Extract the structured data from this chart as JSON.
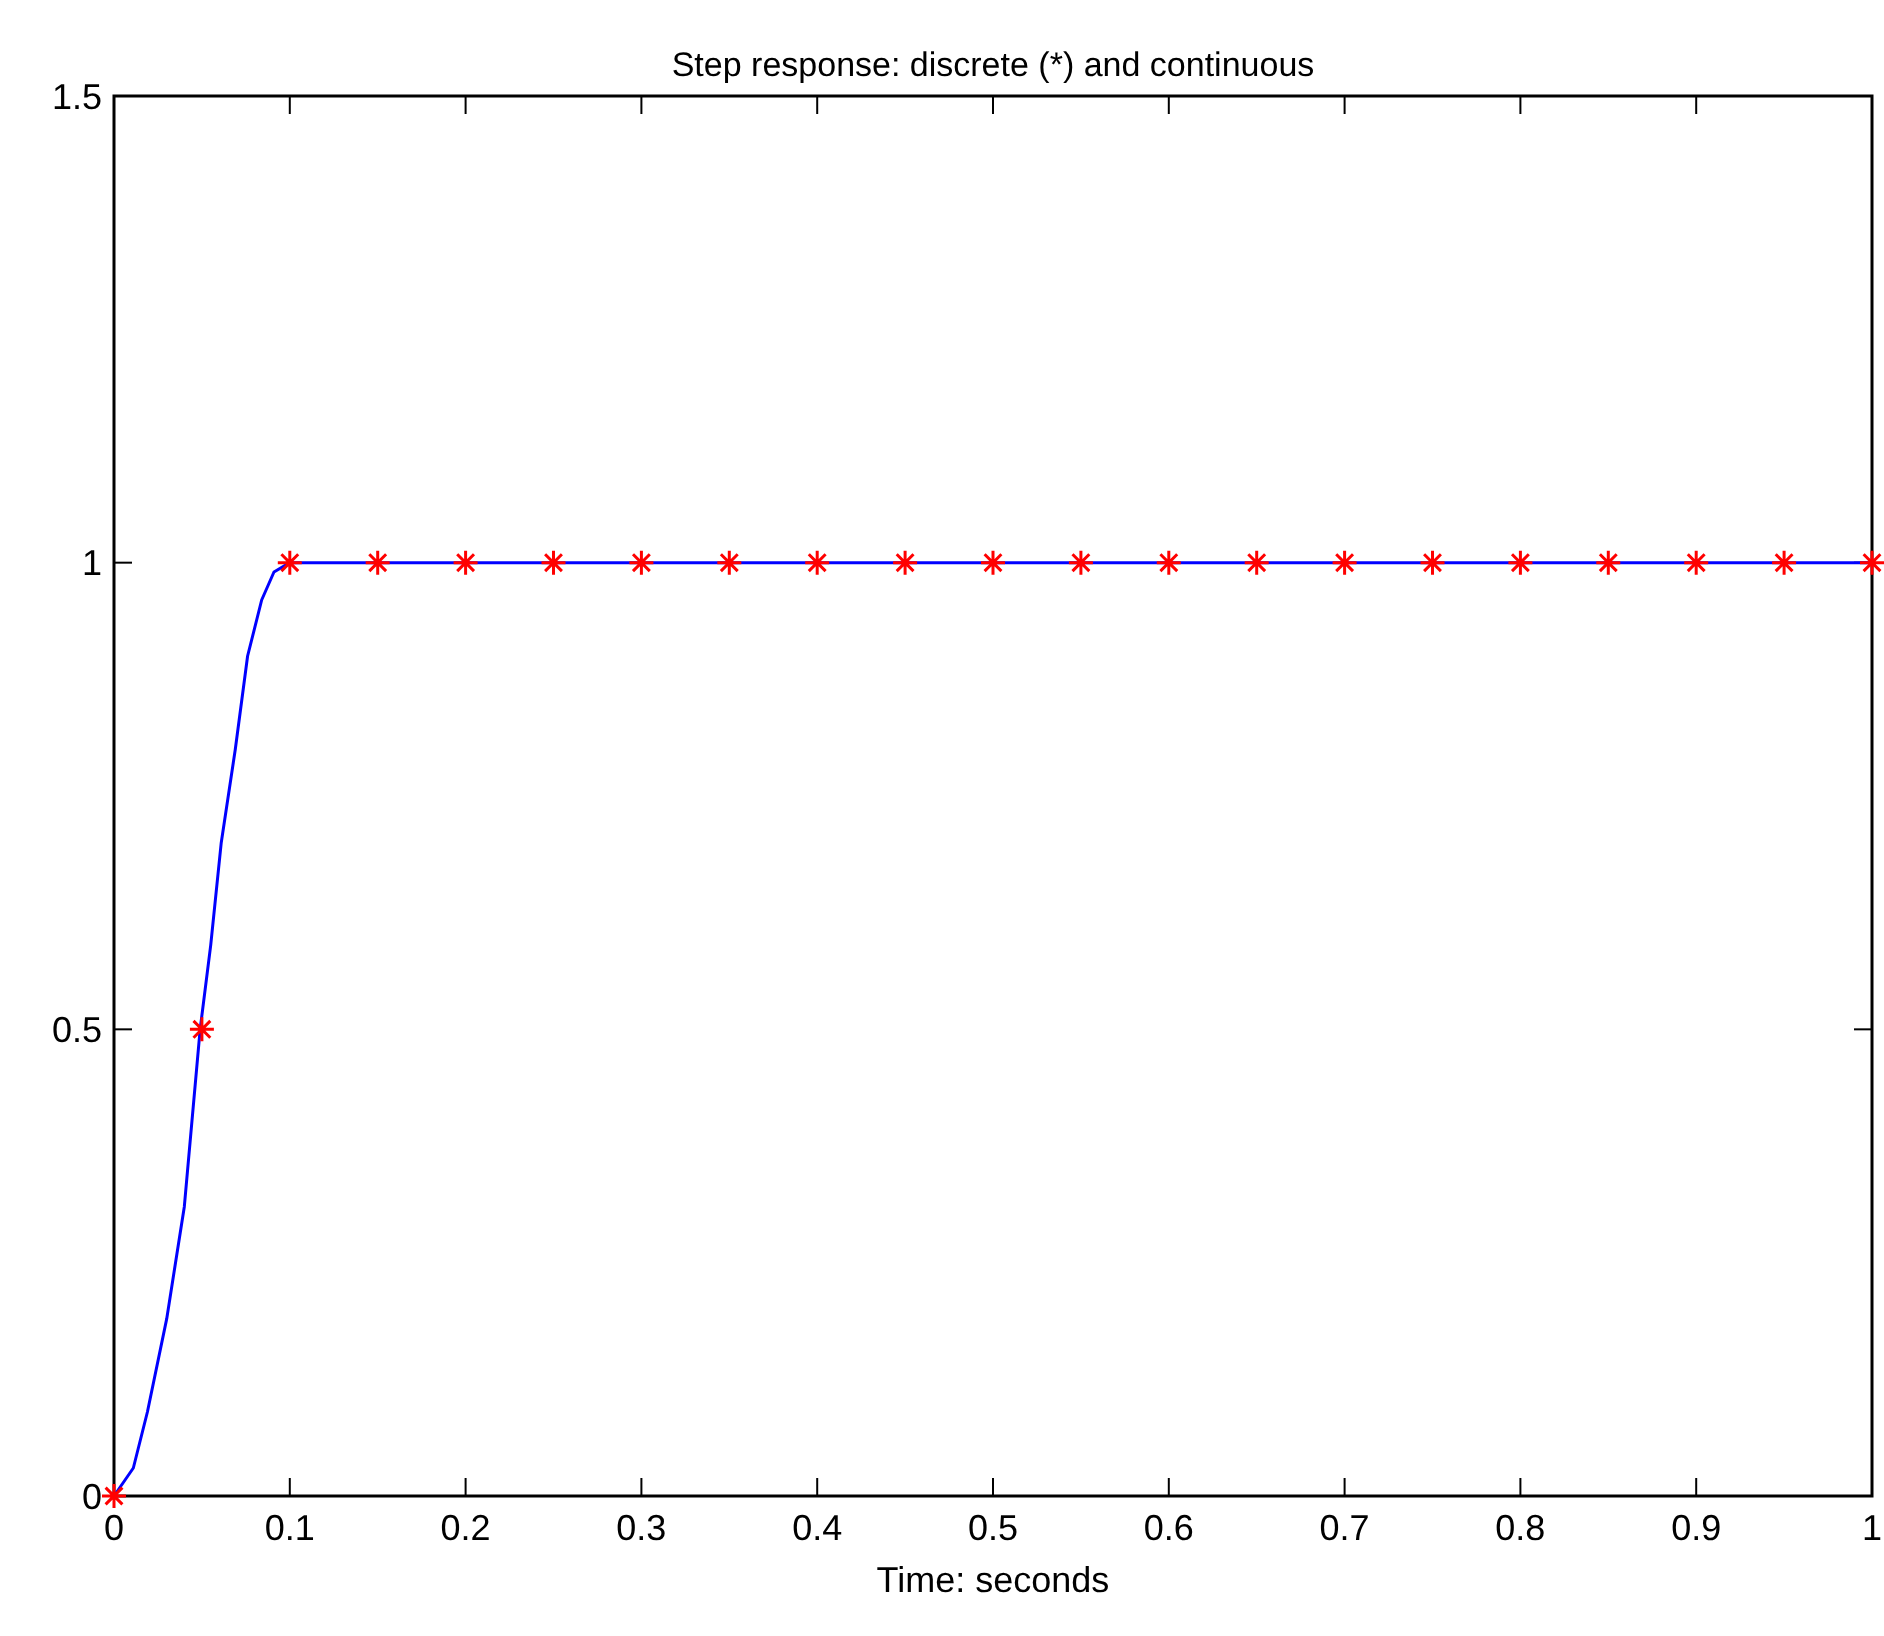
{
  "chart_data": {
    "type": "line",
    "title": "Step response: discrete (*) and continuous",
    "xlabel": "Time: seconds",
    "xlim": [
      0,
      1
    ],
    "xticks": [
      0,
      0.1,
      0.2,
      0.3,
      0.4,
      0.5,
      0.6,
      0.7,
      0.8,
      0.9,
      1
    ],
    "ylim": [
      0,
      1.5
    ],
    "yticks": [
      0,
      0.5,
      1,
      1.5
    ],
    "grid": false,
    "series": [
      {
        "color": "#0000ff",
        "marker": "none",
        "line_style": "solid",
        "x": [
          0,
          0.011,
          0.019,
          0.03,
          0.04,
          0.049,
          0.055,
          0.061,
          0.069,
          0.076,
          0.084,
          0.091,
          0.1,
          0.225,
          0.325,
          0.425,
          0.525,
          0.625,
          0.725,
          0.825,
          0.925,
          1
        ],
        "values": [
          0,
          0.03,
          0.09,
          0.19,
          0.31,
          0.5,
          0.59,
          0.7,
          0.8,
          0.9,
          0.96,
          0.99,
          1,
          1,
          1,
          1,
          1,
          1,
          1,
          1,
          1,
          1
        ]
      },
      {
        "type": "scatter",
        "color": "#ff0000",
        "marker": "cross",
        "x": [
          0,
          0.05,
          0.1,
          0.15,
          0.2,
          0.25,
          0.3,
          0.35,
          0.4,
          0.45,
          0.5,
          0.55,
          0.6,
          0.65,
          0.7,
          0.75,
          0.8,
          0.85,
          0.9,
          0.95,
          1
        ],
        "values": [
          0,
          0.5,
          1,
          1,
          1,
          1,
          1,
          1,
          1,
          1,
          1,
          1,
          1,
          1,
          1,
          1,
          1,
          1,
          1,
          1,
          1
        ]
      }
    ]
  }
}
